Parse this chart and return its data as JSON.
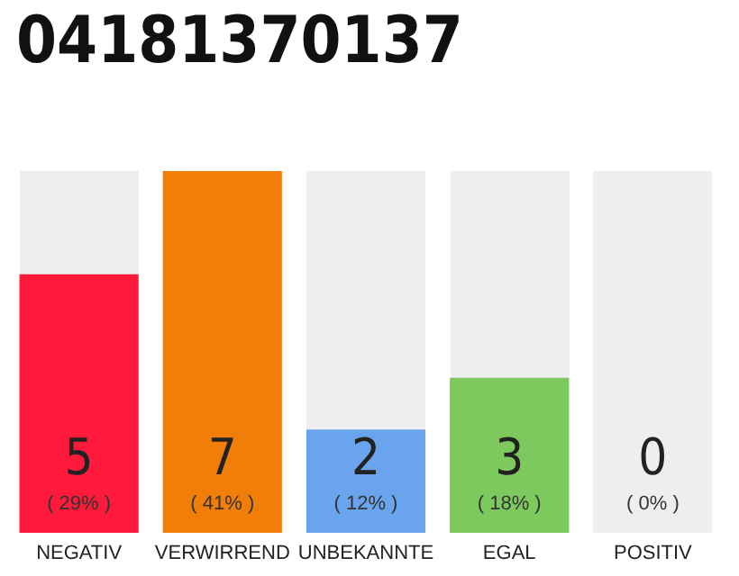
{
  "chart_data": {
    "type": "bar",
    "title": "04181370137",
    "categories": [
      "NEGATIV",
      "VERWIRREND",
      "UNBEKANNTE",
      "EGAL",
      "POSITIV"
    ],
    "values": [
      5,
      7,
      2,
      3,
      0
    ],
    "colors": [
      "#ff1a3c",
      "#f27e0a",
      "#6aa3ee",
      "#7dc95e",
      null
    ],
    "value_labels": [
      "5\n( 29% )",
      "7\n( 41% )",
      "2\n( 12% )",
      "3\n( 18% )",
      "0\n( 0% )"
    ]
  }
}
